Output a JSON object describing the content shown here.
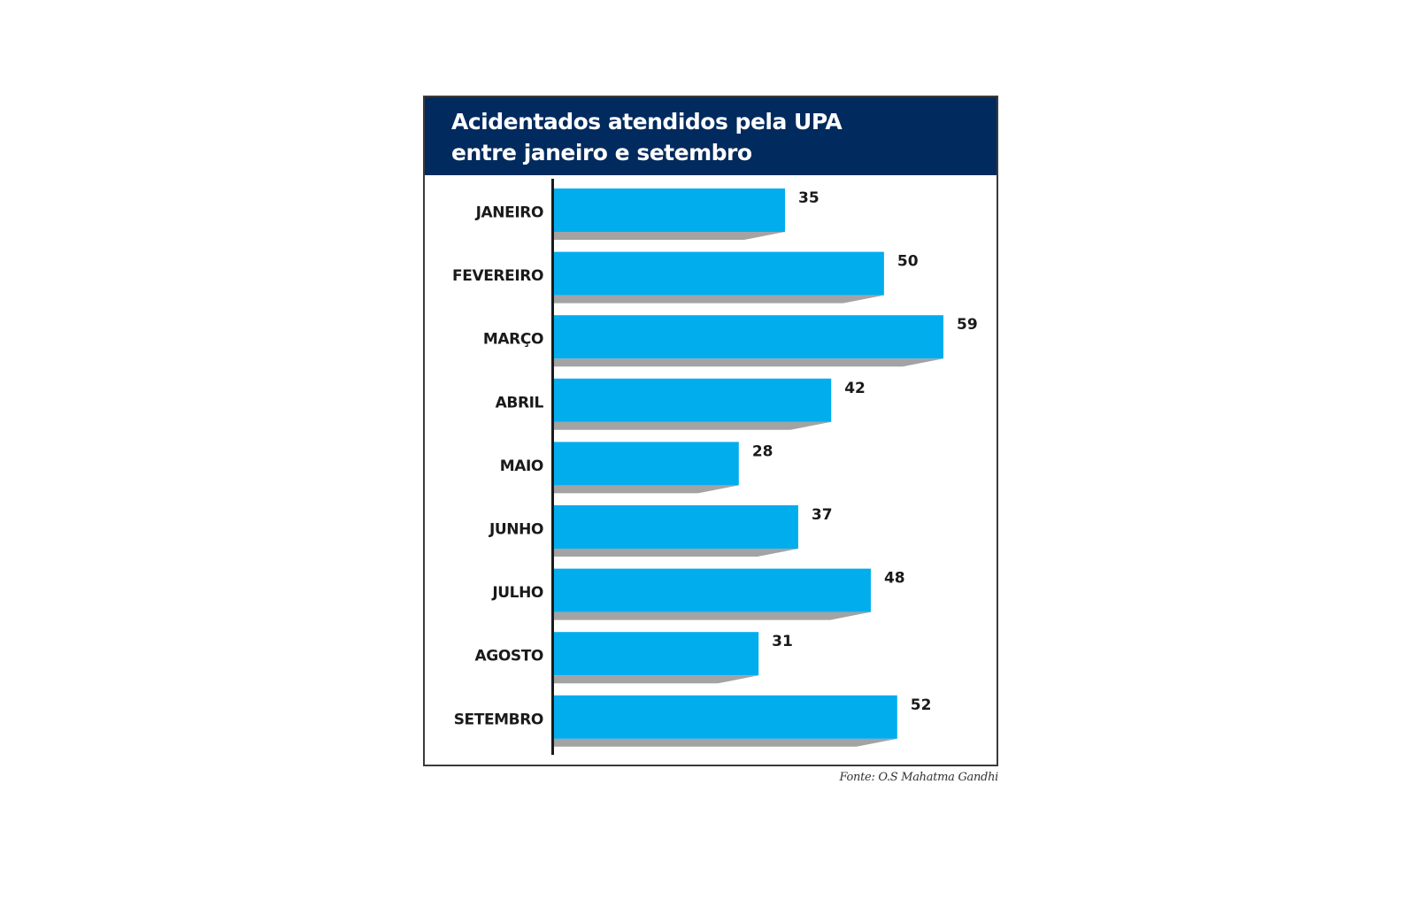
{
  "chart_data": {
    "type": "bar",
    "orientation": "horizontal",
    "title": "Acidentados atendidos pela UPA\nentre janeiro e setembro",
    "categories": [
      "JANEIRO",
      "FEVEREIRO",
      "MARÇO",
      "ABRIL",
      "MAIO",
      "JUNHO",
      "JULHO",
      "AGOSTO",
      "SETEMBRO"
    ],
    "values": [
      35,
      50,
      59,
      42,
      28,
      37,
      48,
      31,
      52
    ],
    "value_labels": [
      "35",
      "50",
      "59",
      "42",
      "28",
      "37",
      "48",
      "31",
      "52"
    ],
    "xlim": [
      0,
      59
    ],
    "grid": false,
    "legend": "none",
    "source": "Fonte: O.S Mahatma Gandhi",
    "colors": {
      "header": "#012a5e",
      "bar": "#02adee",
      "bar_shadow": "#a3a3a3",
      "axis": "#1a1a1a",
      "text": "#1a1a1a"
    }
  }
}
